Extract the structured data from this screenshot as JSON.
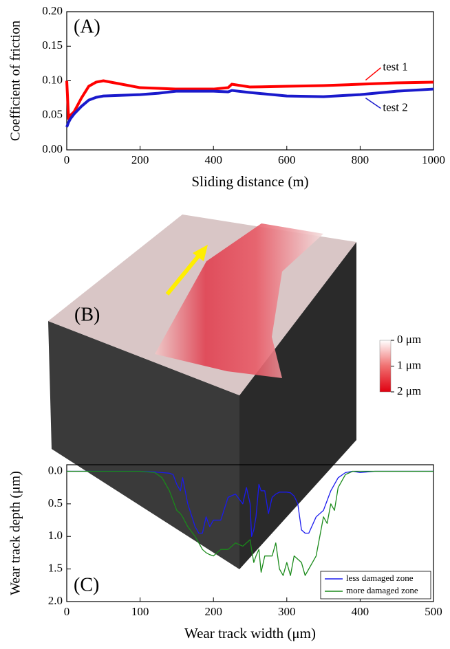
{
  "chart_data": [
    {
      "type": "line",
      "label": "(A)",
      "x_label": "Sliding distance (m)",
      "y_label": "Coefficient of friction",
      "x": [
        0,
        5,
        10,
        20,
        40,
        60,
        80,
        100,
        150,
        200,
        250,
        300,
        350,
        400,
        440,
        450,
        500,
        600,
        700,
        800,
        900,
        1000
      ],
      "series": [
        {
          "name": "test 1",
          "color": "#ff0000",
          "values": [
            0.1,
            0.045,
            0.05,
            0.055,
            0.075,
            0.092,
            0.098,
            0.1,
            0.095,
            0.09,
            0.089,
            0.088,
            0.088,
            0.088,
            0.09,
            0.095,
            0.091,
            0.092,
            0.093,
            0.095,
            0.097,
            0.098
          ]
        },
        {
          "name": "test 2",
          "color": "#1a1acc",
          "values": [
            0.033,
            0.04,
            0.045,
            0.052,
            0.063,
            0.072,
            0.076,
            0.078,
            0.079,
            0.08,
            0.082,
            0.085,
            0.085,
            0.085,
            0.084,
            0.086,
            0.083,
            0.078,
            0.077,
            0.08,
            0.085,
            0.088
          ]
        }
      ],
      "xlim": [
        0,
        1000
      ],
      "xticks": [
        0,
        200,
        400,
        600,
        800,
        1000
      ],
      "ylim": [
        0,
        0.2
      ],
      "yticks": [
        {
          "value": 0,
          "label": "0.00"
        },
        {
          "value": 0.05,
          "label": "0.05"
        },
        {
          "value": 0.1,
          "label": "0.10"
        },
        {
          "value": 0.15,
          "label": "0.15"
        },
        {
          "value": 0.2,
          "label": "0.20"
        }
      ],
      "y_inverted": false,
      "line_width": 4
    },
    {
      "type": "image",
      "label": "(B)",
      "clim": [
        0,
        2
      ],
      "colorbar_ticks": [
        {
          "value": 0,
          "label": "0 μm"
        },
        {
          "value": 1,
          "label": "1 μm"
        },
        {
          "value": 2,
          "label": "2 μm"
        }
      ]
    },
    {
      "type": "line",
      "label": "(C)",
      "x_label": "Wear track width (μm)",
      "y_label": "Wear track depth (μm)",
      "x": [
        0,
        100,
        120,
        130,
        140,
        145,
        150,
        155,
        158,
        165,
        175,
        180,
        185,
        190,
        195,
        200,
        210,
        220,
        230,
        240,
        245,
        250,
        252,
        255,
        258,
        262,
        265,
        270,
        275,
        280,
        285,
        290,
        295,
        300,
        305,
        310,
        315,
        320,
        325,
        330,
        340,
        345,
        350,
        355,
        360,
        365,
        370,
        380,
        390,
        400,
        420,
        500
      ],
      "series": [
        {
          "name": "less damaged zone",
          "color": "#1a1aee",
          "values": [
            0,
            0,
            0.01,
            0.02,
            0.03,
            0.05,
            0.2,
            0.3,
            0.1,
            0.5,
            0.85,
            0.95,
            0.95,
            0.7,
            0.85,
            0.75,
            0.75,
            0.4,
            0.35,
            0.5,
            0.25,
            0.5,
            1.0,
            0.9,
            0.7,
            0.2,
            0.3,
            0.3,
            0.65,
            0.4,
            0.35,
            0.32,
            0.32,
            0.32,
            0.33,
            0.38,
            0.5,
            0.9,
            0.95,
            0.95,
            0.7,
            0.65,
            0.6,
            0.45,
            0.3,
            0.2,
            0.1,
            0.02,
            0,
            0.02,
            0,
            0
          ]
        },
        {
          "name": "more damaged zone",
          "color": "#1a8a1a",
          "values": [
            0,
            0,
            0.02,
            0.1,
            0.3,
            0.45,
            0.6,
            0.65,
            0.7,
            0.85,
            1.0,
            1.1,
            1.2,
            1.25,
            1.28,
            1.3,
            1.2,
            1.2,
            1.1,
            1.15,
            1.1,
            1.05,
            1.2,
            1.4,
            1.3,
            1.2,
            1.55,
            1.3,
            1.3,
            1.3,
            1.1,
            1.5,
            1.6,
            1.4,
            1.6,
            1.3,
            1.35,
            1.4,
            1.6,
            1.5,
            1.3,
            1.0,
            0.7,
            0.8,
            0.5,
            0.6,
            0.25,
            0.05,
            0,
            0,
            0,
            0
          ]
        }
      ],
      "xlim": [
        0,
        500
      ],
      "xticks": [
        0,
        100,
        200,
        300,
        400,
        500
      ],
      "ylim": [
        -0.1,
        2.0
      ],
      "yticks": [
        {
          "value": 0,
          "label": "0.0"
        },
        {
          "value": 0.5,
          "label": "0.5"
        },
        {
          "value": 1,
          "label": "1.0"
        },
        {
          "value": 1.5,
          "label": "1.5"
        },
        {
          "value": 2,
          "label": "2.0"
        }
      ],
      "y_inverted": true,
      "legend": "lower-right",
      "line_width": 1.3
    }
  ]
}
